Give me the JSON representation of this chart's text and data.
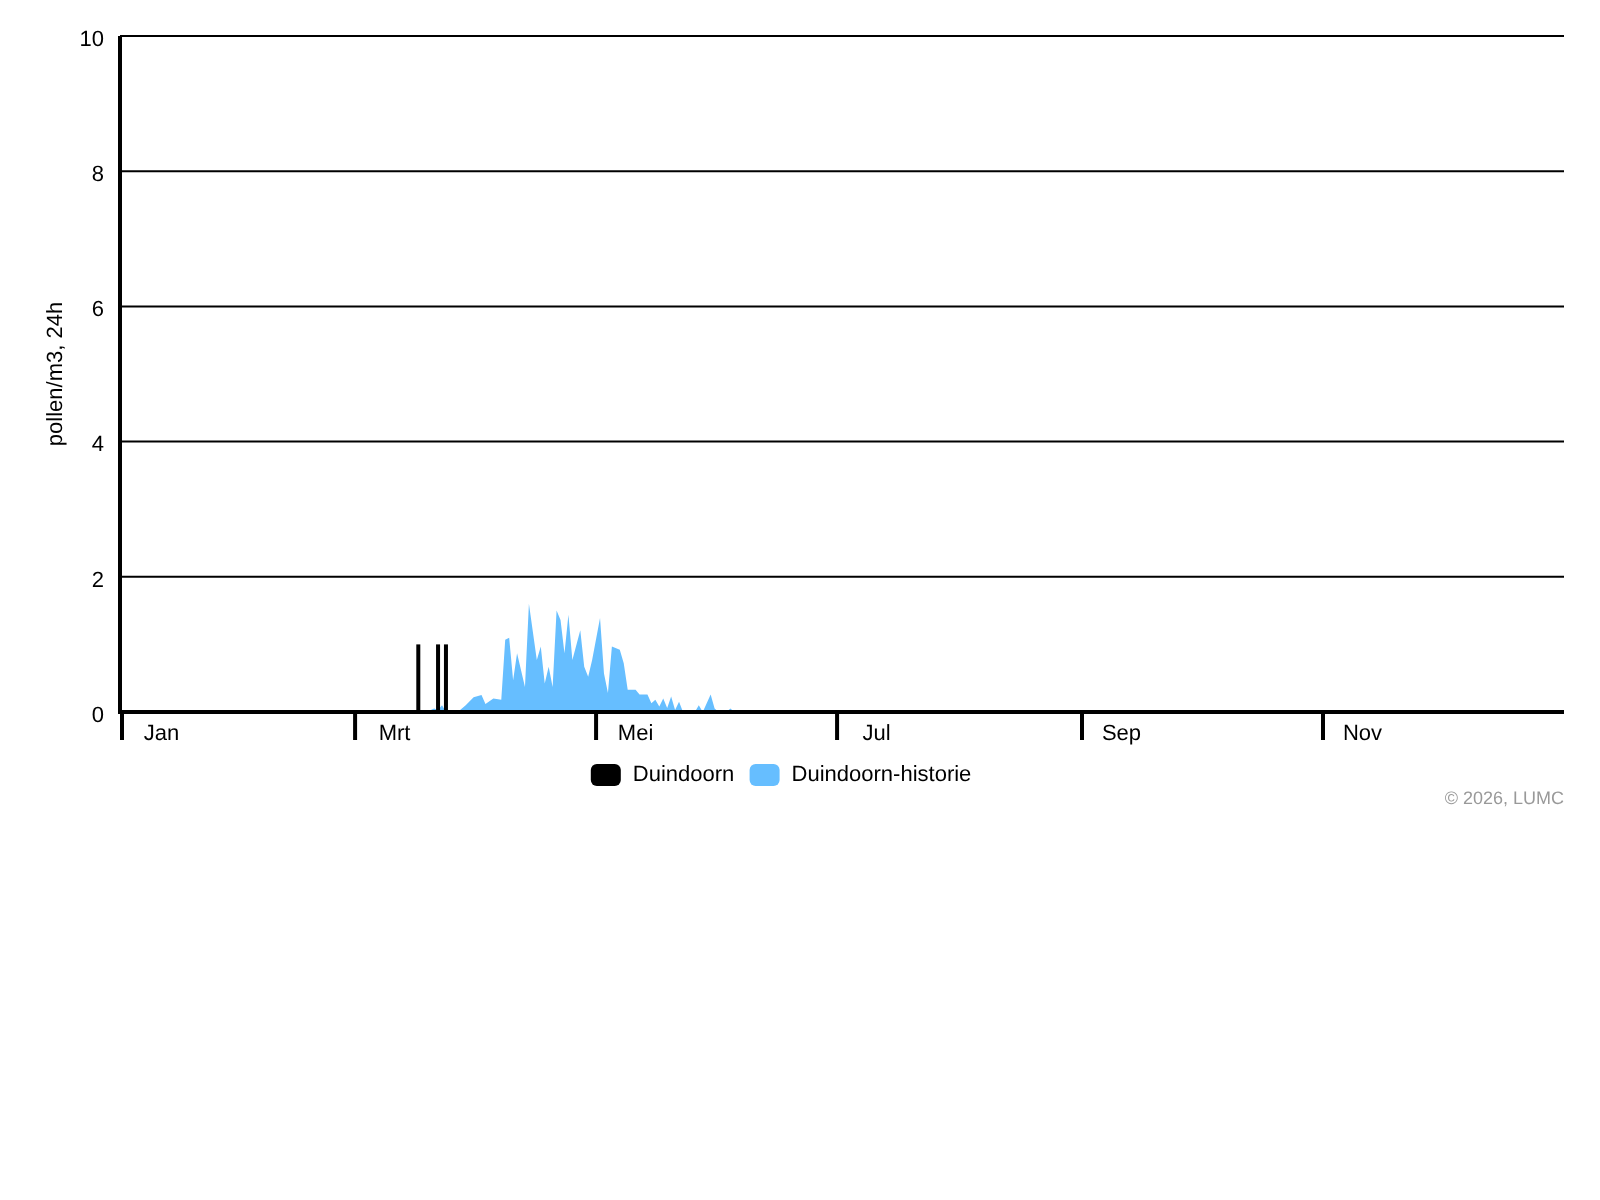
{
  "chart_data": {
    "type": "area",
    "ylabel": "pollen/m3, 24h",
    "xlim": [
      "2026-01-01",
      "2027-01-01"
    ],
    "xticks": [
      {
        "value": "2026-01-01",
        "label": null
      },
      {
        "value": "2026-01-11",
        "label": "Jan"
      },
      {
        "value": "2026-03-01",
        "label": null
      },
      {
        "value": "2026-03-11",
        "label": "Mrt"
      },
      {
        "value": "2026-05-01",
        "label": null
      },
      {
        "value": "2026-05-11",
        "label": "Mei"
      },
      {
        "value": "2026-07-01",
        "label": null
      },
      {
        "value": "2026-07-11",
        "label": "Jul"
      },
      {
        "value": "2026-09-01",
        "label": null
      },
      {
        "value": "2026-09-11",
        "label": "Sep"
      },
      {
        "value": "2026-11-01",
        "label": null
      },
      {
        "value": "2026-11-11",
        "label": "Nov"
      }
    ],
    "ylim": [
      0,
      10
    ],
    "yticks": [
      0,
      2,
      4,
      6,
      8,
      10
    ],
    "grid": "y",
    "legend": "bottom",
    "series": [
      {
        "name": "Duindoorn",
        "type": "bar",
        "color": "#000000",
        "x": [
          "2026-03-17",
          "2026-03-22",
          "2026-03-24"
        ],
        "values": [
          1,
          1,
          1
        ]
      },
      {
        "name": "Duindoorn-historie",
        "color": "#66beff",
        "x": [
          "2026-03-19",
          "2026-03-21",
          "2026-03-22",
          "2026-03-23",
          "2026-03-24",
          "2026-03-27",
          "2026-03-29",
          "2026-03-31",
          "2026-04-02",
          "2026-04-03",
          "2026-04-05",
          "2026-04-07",
          "2026-04-08",
          "2026-04-09",
          "2026-04-10",
          "2026-04-11",
          "2026-04-13",
          "2026-04-14",
          "2026-04-16",
          "2026-04-17",
          "2026-04-18",
          "2026-04-19",
          "2026-04-20",
          "2026-04-21",
          "2026-04-22",
          "2026-04-23",
          "2026-04-24",
          "2026-04-25",
          "2026-04-27",
          "2026-04-28",
          "2026-04-29",
          "2026-04-30",
          "2026-05-02",
          "2026-05-03",
          "2026-05-04",
          "2026-05-05",
          "2026-05-07",
          "2026-05-08",
          "2026-05-09",
          "2026-05-11",
          "2026-05-12",
          "2026-05-14",
          "2026-05-15",
          "2026-05-16",
          "2026-05-17",
          "2026-05-18",
          "2026-05-19",
          "2026-05-20",
          "2026-05-21",
          "2026-05-22",
          "2026-05-23",
          "2026-05-26",
          "2026-05-27",
          "2026-05-28",
          "2026-05-30",
          "2026-05-31",
          "2026-06-01",
          "2026-06-03",
          "2026-06-04",
          "2026-06-05"
        ],
        "values": [
          0,
          0.05,
          0.03,
          0.1,
          0,
          0,
          0.1,
          0.22,
          0.25,
          0.12,
          0.2,
          0.18,
          1.07,
          1.1,
          0.47,
          0.87,
          0.37,
          1.6,
          0.77,
          0.97,
          0.42,
          0.67,
          0.37,
          1.5,
          1.36,
          0.87,
          1.44,
          0.77,
          1.21,
          0.67,
          0.52,
          0.77,
          1.39,
          0.57,
          0.28,
          0.97,
          0.92,
          0.72,
          0.33,
          0.33,
          0.26,
          0.26,
          0.13,
          0.18,
          0.08,
          0.2,
          0.06,
          0.23,
          0.03,
          0.15,
          0,
          0,
          0.1,
          0,
          0.26,
          0.05,
          0,
          0,
          0.05,
          0
        ]
      }
    ],
    "annotations": [
      "© 2026, LUMC"
    ]
  }
}
